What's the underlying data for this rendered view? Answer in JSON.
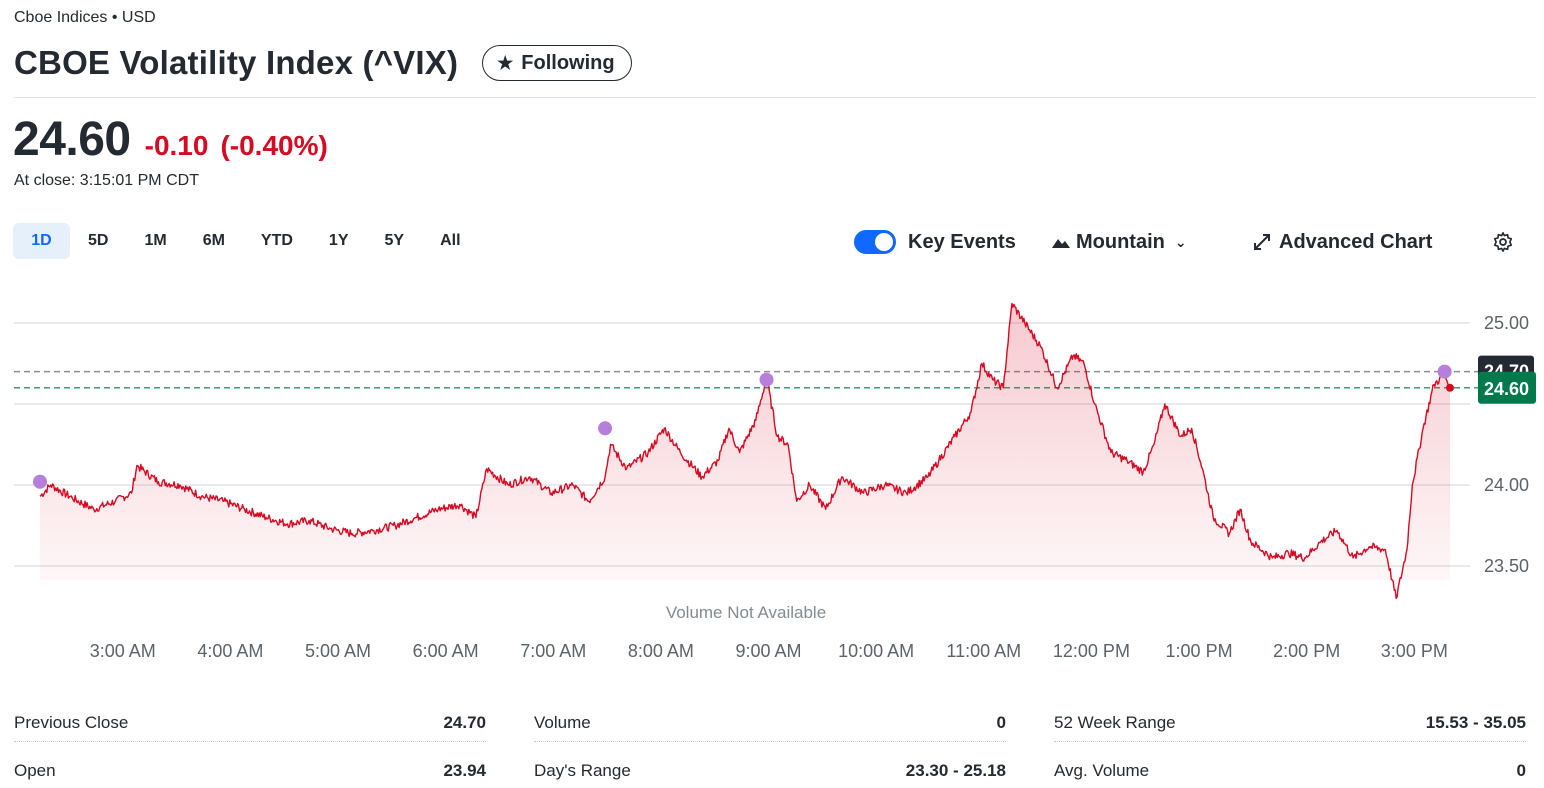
{
  "header": {
    "exchange": "Cboe Indices • USD",
    "title": "CBOE Volatility Index (^VIX)",
    "follow_label": "Following"
  },
  "quote": {
    "price": "24.60",
    "change": "-0.10",
    "change_pct": "(-0.40%)",
    "at_close": "At close: 3:15:01 PM CDT"
  },
  "range_tabs": [
    "1D",
    "5D",
    "1M",
    "6M",
    "YTD",
    "1Y",
    "5Y",
    "All"
  ],
  "active_range": "1D",
  "toolbar": {
    "key_events_label": "Key Events",
    "key_events_on": true,
    "chart_type_label": "Mountain",
    "advanced_label": "Advanced Chart"
  },
  "colors": {
    "line": "#d60a22",
    "accent": "#0f69ff",
    "prev_close_tag": "#232a31",
    "current_tag": "#007a4d",
    "event_dot": "#b57fdb"
  },
  "chart_data": {
    "type": "area",
    "title": "",
    "xlabel": "",
    "ylabel": "",
    "x_ticks": [
      "3:00 AM",
      "4:00 AM",
      "5:00 AM",
      "6:00 AM",
      "7:00 AM",
      "8:00 AM",
      "9:00 AM",
      "10:00 AM",
      "11:00 AM",
      "12:00 PM",
      "1:00 PM",
      "2:00 PM",
      "3:00 PM"
    ],
    "y_ticks": [
      "25.00",
      "24.00",
      "23.50"
    ],
    "ylim": [
      23.25,
      25.25
    ],
    "xlim_hours": [
      2.25,
      15.35
    ],
    "previous_close": 24.7,
    "previous_close_label": "24.70",
    "current": 24.6,
    "current_label": "24.60",
    "volume_note": "Volume Not Available",
    "grid": true,
    "series": [
      {
        "points": [
          [
            2.25,
            23.93
          ],
          [
            2.35,
            24.0
          ],
          [
            2.55,
            23.92
          ],
          [
            2.75,
            23.85
          ],
          [
            2.95,
            23.9
          ],
          [
            3.1,
            23.95
          ],
          [
            3.15,
            24.12
          ],
          [
            3.35,
            24.02
          ],
          [
            3.55,
            24.0
          ],
          [
            3.75,
            23.93
          ],
          [
            3.95,
            23.9
          ],
          [
            4.15,
            23.85
          ],
          [
            4.35,
            23.8
          ],
          [
            4.55,
            23.76
          ],
          [
            4.75,
            23.78
          ],
          [
            4.95,
            23.73
          ],
          [
            5.15,
            23.7
          ],
          [
            5.35,
            23.72
          ],
          [
            5.55,
            23.75
          ],
          [
            5.75,
            23.8
          ],
          [
            5.95,
            23.85
          ],
          [
            6.15,
            23.88
          ],
          [
            6.3,
            23.8
          ],
          [
            6.4,
            24.1
          ],
          [
            6.6,
            24.0
          ],
          [
            6.8,
            24.05
          ],
          [
            7.0,
            23.95
          ],
          [
            7.2,
            24.0
          ],
          [
            7.35,
            23.9
          ],
          [
            7.5,
            24.05
          ],
          [
            7.55,
            24.25
          ],
          [
            7.7,
            24.1
          ],
          [
            7.9,
            24.2
          ],
          [
            8.05,
            24.35
          ],
          [
            8.2,
            24.2
          ],
          [
            8.4,
            24.05
          ],
          [
            8.55,
            24.15
          ],
          [
            8.65,
            24.35
          ],
          [
            8.75,
            24.2
          ],
          [
            8.9,
            24.4
          ],
          [
            9.0,
            24.66
          ],
          [
            9.1,
            24.3
          ],
          [
            9.2,
            24.25
          ],
          [
            9.28,
            23.9
          ],
          [
            9.4,
            24.0
          ],
          [
            9.55,
            23.85
          ],
          [
            9.7,
            24.05
          ],
          [
            9.9,
            23.95
          ],
          [
            10.1,
            24.0
          ],
          [
            10.3,
            23.95
          ],
          [
            10.5,
            24.05
          ],
          [
            10.6,
            24.15
          ],
          [
            10.75,
            24.3
          ],
          [
            10.9,
            24.45
          ],
          [
            11.0,
            24.75
          ],
          [
            11.1,
            24.65
          ],
          [
            11.2,
            24.6
          ],
          [
            11.28,
            25.12
          ],
          [
            11.4,
            25.0
          ],
          [
            11.55,
            24.85
          ],
          [
            11.7,
            24.6
          ],
          [
            11.85,
            24.8
          ],
          [
            11.95,
            24.75
          ],
          [
            12.05,
            24.5
          ],
          [
            12.2,
            24.2
          ],
          [
            12.35,
            24.15
          ],
          [
            12.5,
            24.08
          ],
          [
            12.6,
            24.25
          ],
          [
            12.7,
            24.5
          ],
          [
            12.85,
            24.3
          ],
          [
            12.95,
            24.35
          ],
          [
            13.05,
            24.1
          ],
          [
            13.15,
            23.8
          ],
          [
            13.3,
            23.7
          ],
          [
            13.4,
            23.85
          ],
          [
            13.5,
            23.65
          ],
          [
            13.7,
            23.55
          ],
          [
            13.85,
            23.58
          ],
          [
            14.0,
            23.55
          ],
          [
            14.15,
            23.65
          ],
          [
            14.3,
            23.72
          ],
          [
            14.45,
            23.55
          ],
          [
            14.6,
            23.62
          ],
          [
            14.75,
            23.6
          ],
          [
            14.85,
            23.3
          ],
          [
            14.95,
            23.6
          ],
          [
            15.0,
            24.0
          ],
          [
            15.1,
            24.35
          ],
          [
            15.2,
            24.62
          ],
          [
            15.3,
            24.68
          ],
          [
            15.35,
            24.6
          ]
        ]
      }
    ],
    "key_events": [
      [
        2.25,
        24.02
      ],
      [
        7.5,
        24.35
      ],
      [
        9.0,
        24.65
      ],
      [
        15.3,
        24.7
      ]
    ]
  },
  "stats": [
    {
      "label": "Previous Close",
      "value": "24.70"
    },
    {
      "label": "Volume",
      "value": "0"
    },
    {
      "label": "52 Week Range",
      "value": "15.53 - 35.05"
    },
    {
      "label": "Open",
      "value": "23.94"
    },
    {
      "label": "Day's Range",
      "value": "23.30 - 25.18"
    },
    {
      "label": "Avg. Volume",
      "value": "0"
    }
  ]
}
